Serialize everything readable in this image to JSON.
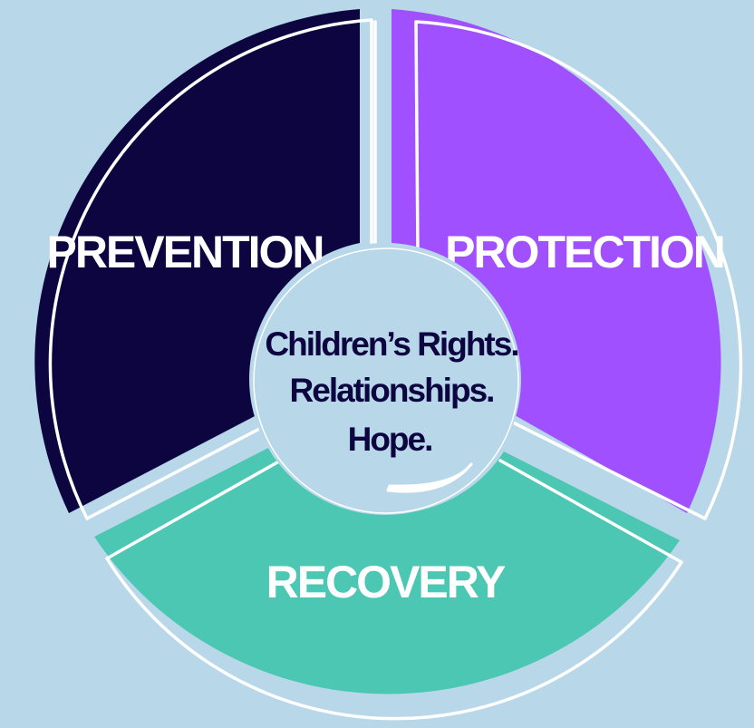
{
  "segments": [
    {
      "label": "PREVENTION"
    },
    {
      "label": "PROTECTION"
    },
    {
      "label": "RECOVERY"
    }
  ],
  "center": {
    "lines": [
      "Children’s Rights.",
      "Relationships.",
      "Hope."
    ]
  },
  "colors": {
    "background": "#b8d8ea",
    "prevention": "#0d0540",
    "protection": "#a050ff",
    "recovery": "#4cc7b3",
    "center_fill": "#b8d8ea",
    "center_text": "#0d0540",
    "outline": "#ffffff"
  }
}
